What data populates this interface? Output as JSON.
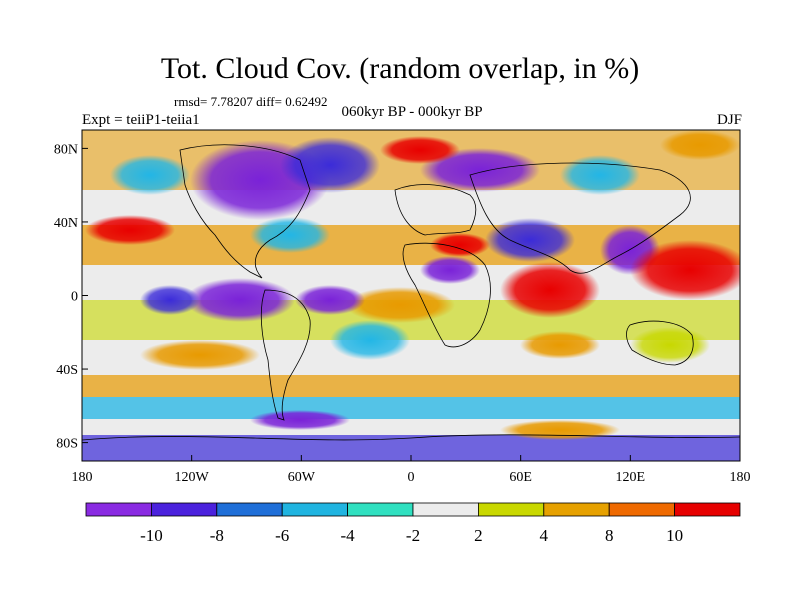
{
  "header": {
    "title": "Tot. Cloud Cov. (random overlap, in %)",
    "stats": "rmsd= 7.78207 diff= 0.62492",
    "experiment": "Expt = teiiP1-teiia1",
    "period": "060kyr BP - 000kyr BP",
    "season": "DJF"
  },
  "map": {
    "lat_ticks": [
      "80N",
      "40N",
      "0",
      "40S",
      "80S"
    ],
    "lat_values": [
      80,
      40,
      0,
      -40,
      -80
    ],
    "lon_ticks": [
      "180",
      "120W",
      "60W",
      "0",
      "60E",
      "120E",
      "180"
    ],
    "lon_values": [
      -180,
      -120,
      -60,
      0,
      60,
      120,
      180
    ],
    "lat_range": [
      -90,
      90
    ],
    "lon_range": [
      -180,
      180
    ]
  },
  "colorbar": {
    "labels": [
      "-10",
      "-8",
      "-6",
      "-4",
      "-2",
      "2",
      "4",
      "8",
      "10"
    ],
    "colors": [
      "#8a2be2",
      "#4b22dd",
      "#1f6fd8",
      "#20b4e0",
      "#30e0c0",
      "#ececec",
      "#c9d800",
      "#e6a100",
      "#ef6a00",
      "#e60000"
    ]
  }
}
